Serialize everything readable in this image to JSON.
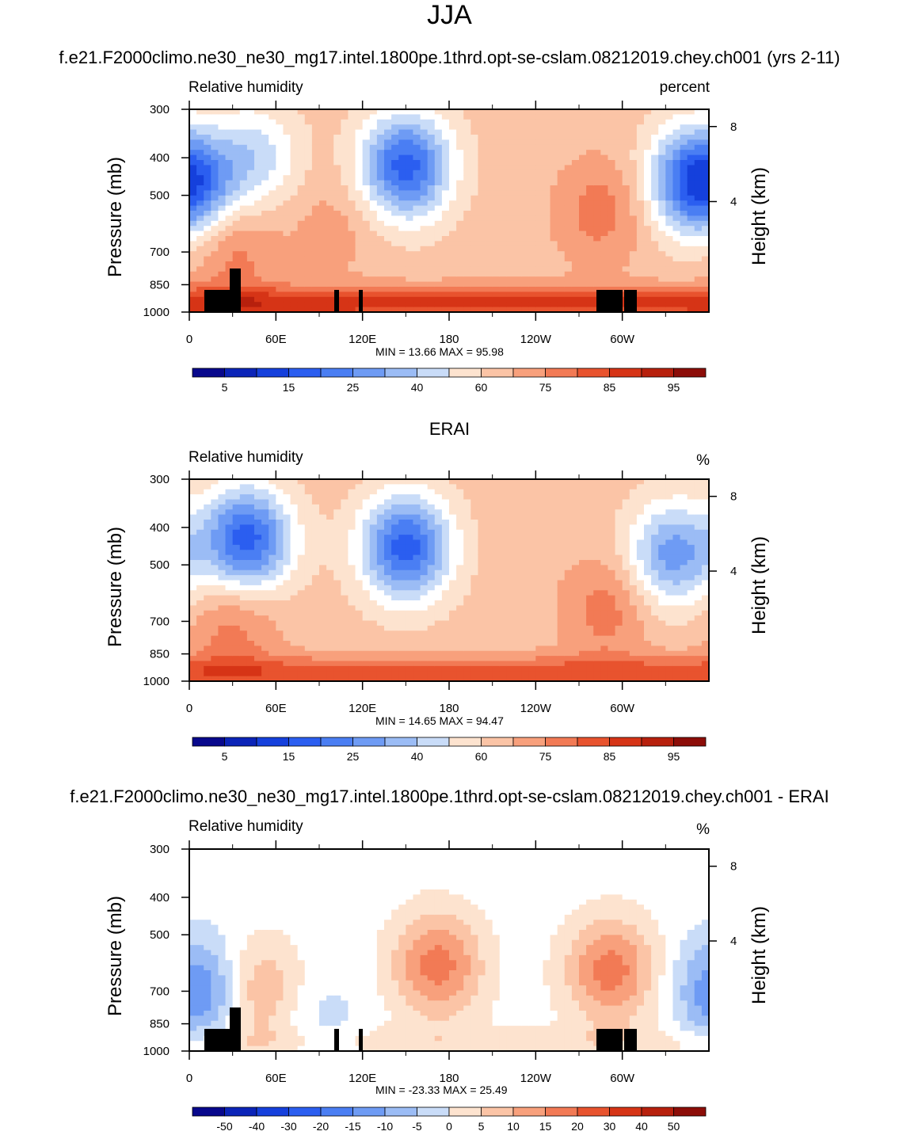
{
  "page": {
    "main_title": "JJA"
  },
  "colors": {
    "palette": [
      "#08088c",
      "#0b24b8",
      "#1540dc",
      "#2b5ef0",
      "#4a7ef3",
      "#6e9bf4",
      "#9bbcf5",
      "#c9dcf8",
      "#ffffff",
      "#fde3cf",
      "#fbc4a6",
      "#f8a07c",
      "#f27a55",
      "#e8532e",
      "#d63416",
      "#b7200d",
      "#8c0d08"
    ],
    "land": "#000000"
  },
  "chart_data": [
    {
      "type": "contour",
      "title": "f.e21.F2000climo.ne30_ne30_mg17.intel.1800pe.1thrd.opt-se-cslam.08212019.chey.ch001 (yrs 2-11)",
      "variable": "Relative humidity",
      "units": "percent",
      "ylabel": "Pressure (mb)",
      "ylabel_right": "Height (km)",
      "y_ticks": [
        "300",
        "400",
        "500",
        "700",
        "850",
        "1000"
      ],
      "y_right_ticks": [
        "8",
        "4"
      ],
      "x_ticks": [
        "0",
        "60E",
        "120E",
        "180",
        "120W",
        "60W"
      ],
      "min_max": "MIN =  13.66  MAX =  95.98",
      "colorbar_labels": [
        "5",
        "15",
        "25",
        "40",
        "60",
        "75",
        "85",
        "95"
      ],
      "fields": {
        "base": 10,
        "lowlevel_peak": 14,
        "dry_centers": [
          {
            "lon": 150,
            "p": 420,
            "level": 3
          },
          {
            "lon": 45,
            "p": 400,
            "level": 7
          },
          {
            "lon": 348,
            "p": 450,
            "level": 5
          },
          {
            "lon": 2,
            "p": 480,
            "level": 6
          }
        ],
        "moist_plumes": [
          {
            "lon": 285,
            "p": 550,
            "level": 12
          },
          {
            "lon": 30,
            "p": 700,
            "level": 12
          },
          {
            "lon": 100,
            "p": 600,
            "level": 11
          }
        ]
      }
    },
    {
      "type": "contour",
      "title": "ERAI",
      "variable": "Relative humidity",
      "units": "%",
      "ylabel": "Pressure (mb)",
      "ylabel_right": "Height (km)",
      "y_ticks": [
        "300",
        "400",
        "500",
        "700",
        "850",
        "1000"
      ],
      "y_right_ticks": [
        "8",
        "4"
      ],
      "x_ticks": [
        "0",
        "60E",
        "120E",
        "180",
        "120W",
        "60W"
      ],
      "min_max": "MIN =  14.65  MAX =  94.47",
      "colorbar_labels": [
        "5",
        "15",
        "25",
        "40",
        "60",
        "75",
        "85",
        "95"
      ],
      "fields": {
        "base": 10,
        "lowlevel_peak": 13,
        "dry_centers": [
          {
            "lon": 150,
            "p": 450,
            "level": 3
          },
          {
            "lon": 40,
            "p": 430,
            "level": 3
          },
          {
            "lon": 335,
            "p": 470,
            "level": 5
          }
        ],
        "moist_plumes": [
          {
            "lon": 290,
            "p": 650,
            "level": 12
          },
          {
            "lon": 30,
            "p": 720,
            "level": 12
          },
          {
            "lon": 115,
            "p": 500,
            "level": 10
          }
        ]
      }
    },
    {
      "type": "contour",
      "title": "f.e21.F2000climo.ne30_ne30_mg17.intel.1800pe.1thrd.opt-se-cslam.08212019.chey.ch001 - ERAI",
      "variable": "Relative humidity",
      "units": "%",
      "ylabel": "Pressure (mb)",
      "ylabel_right": "Height (km)",
      "y_ticks": [
        "300",
        "400",
        "500",
        "700",
        "850",
        "1000"
      ],
      "y_right_ticks": [
        "8",
        "4"
      ],
      "x_ticks": [
        "0",
        "60E",
        "120E",
        "180",
        "120W",
        "60W"
      ],
      "min_max": "MIN = -23.33  MAX =  25.49",
      "colorbar_labels": [
        "-50",
        "-40",
        "-30",
        "-20",
        "-15",
        "-10",
        "-5",
        "0",
        "5",
        "10",
        "15",
        "20",
        "30",
        "40",
        "50"
      ],
      "fields": {
        "base": 8,
        "lowlevel_peak": 9,
        "dry_centers": [
          {
            "lon": 10,
            "p": 700,
            "level": 4
          },
          {
            "lon": 90,
            "p": 860,
            "level": 7
          }
        ],
        "moist_plumes": [
          {
            "lon": 172,
            "p": 600,
            "level": 12
          },
          {
            "lon": 292,
            "p": 620,
            "level": 12
          },
          {
            "lon": 45,
            "p": 700,
            "level": 11
          }
        ]
      }
    }
  ]
}
